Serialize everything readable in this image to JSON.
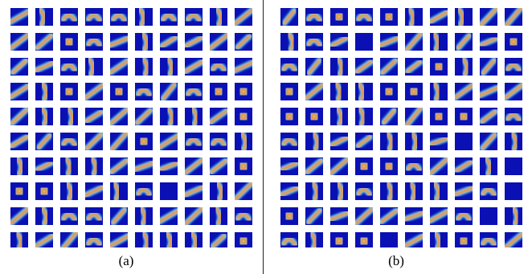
{
  "figure": {
    "panels": [
      {
        "id": "a",
        "caption": "(a)",
        "rows": 10,
        "cols": 10
      },
      {
        "id": "b",
        "caption": "(b)",
        "rows": 10,
        "cols": 10
      }
    ],
    "colors": {
      "background_blue": "#0a10b4",
      "cyan": "#22d0ff",
      "yellow": "#ffe400",
      "red": "#e0101a",
      "divider": "#222222"
    }
  }
}
